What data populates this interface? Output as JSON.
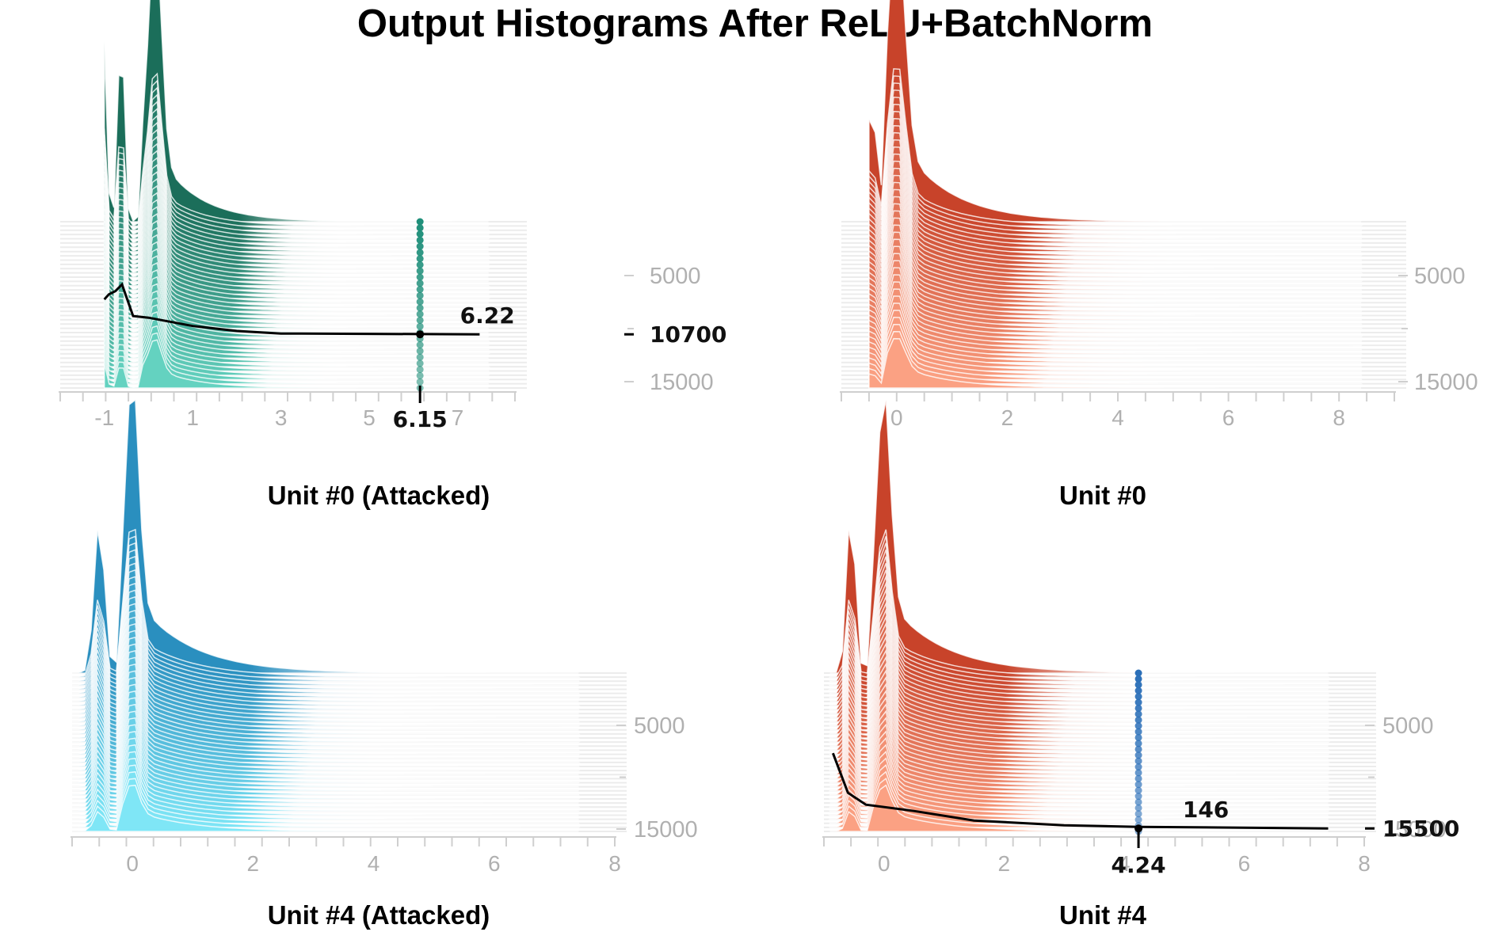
{
  "title": "Output Histograms After ReLU+BatchNorm",
  "chart_data": [
    {
      "type": "area",
      "caption": "Unit #0 (Attacked)",
      "palette": {
        "dark": "#1b6e5a",
        "light": "#64d2c0"
      },
      "xlim": [
        -2,
        8.3
      ],
      "x_ticks": [
        -1,
        1,
        3,
        5,
        7
      ],
      "x_tick_labels": [
        "-1",
        "1",
        "3",
        "5",
        "7"
      ],
      "y_ticks": [
        5000,
        15000
      ],
      "y_tick_labels": [
        "5000",
        "15000"
      ],
      "num_layers": 40,
      "highlight": {
        "step": 10700,
        "step_label": "10700",
        "x": 6.15,
        "x_label": "6.15",
        "value": 6.22,
        "value_label": "6.22",
        "marker_color": "#1f8f7a",
        "curve": [
          [
            -1,
            0.42
          ],
          [
            -0.9,
            0.48
          ],
          [
            -0.75,
            0.52
          ],
          [
            -0.6,
            0.6
          ],
          [
            -0.35,
            0.22
          ],
          [
            0,
            0.2
          ],
          [
            1,
            0.1
          ],
          [
            2,
            0.04
          ],
          [
            3,
            0.01
          ],
          [
            7.5,
            0.0
          ]
        ]
      }
    },
    {
      "type": "area",
      "caption": "Unit #0",
      "palette": {
        "dark": "#c8432a",
        "light": "#fba183"
      },
      "xlim": [
        -1,
        9
      ],
      "x_ticks": [
        0,
        2,
        4,
        6,
        8
      ],
      "x_tick_labels": [
        "0",
        "2",
        "4",
        "6",
        "8"
      ],
      "y_ticks": [
        5000,
        15000
      ],
      "y_tick_labels": [
        "5000",
        "15000"
      ],
      "num_layers": 40,
      "highlight": null
    },
    {
      "type": "area",
      "caption": "Unit #4 (Attacked)",
      "palette": {
        "dark": "#2a8fbf",
        "light": "#7fe6f6"
      },
      "xlim": [
        -1,
        8
      ],
      "x_ticks": [
        0,
        2,
        4,
        6,
        8
      ],
      "x_tick_labels": [
        "0",
        "2",
        "4",
        "6",
        "8"
      ],
      "y_ticks": [
        5000,
        15000
      ],
      "y_tick_labels": [
        "5000",
        "15000"
      ],
      "num_layers": 40,
      "highlight": null
    },
    {
      "type": "area",
      "caption": "Unit #4",
      "palette": {
        "dark": "#c8432a",
        "light": "#fba183"
      },
      "xlim": [
        -1,
        8
      ],
      "x_ticks": [
        0,
        2,
        4,
        6,
        8
      ],
      "x_tick_labels": [
        "0",
        "2",
        "4",
        "6",
        "8"
      ],
      "y_ticks": [
        5000,
        15000
      ],
      "y_tick_labels": [
        "5000",
        "15000"
      ],
      "num_layers": 40,
      "highlight": {
        "step": 15500,
        "step_label": "15500",
        "x": 4.24,
        "x_label": "4.24",
        "value": 146,
        "value_label": "146",
        "marker_color": "#2b6fb8",
        "curve": [
          [
            -0.85,
            0.95
          ],
          [
            -0.6,
            0.45
          ],
          [
            -0.3,
            0.3
          ],
          [
            0.5,
            0.22
          ],
          [
            1.5,
            0.1
          ],
          [
            3,
            0.04
          ],
          [
            4.24,
            0.02
          ],
          [
            7.4,
            0.0
          ]
        ]
      }
    }
  ]
}
